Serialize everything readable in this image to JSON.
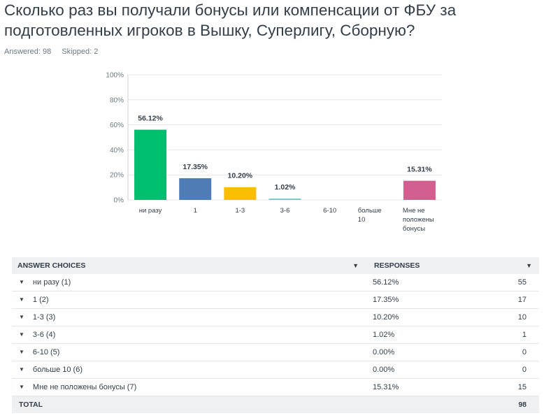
{
  "question": {
    "title": "Сколько раз вы получали бонусы или компенсации от ФБУ за подготовленных игроков в Вышку, Суперлигу, Сборную?",
    "answered": "Answered: 98",
    "skipped": "Skipped: 2"
  },
  "chart_data": {
    "type": "bar",
    "categories": [
      "ни разу",
      "1",
      "1-3",
      "3-6",
      "6-10",
      "больше 10",
      "Мне не положены бонусы"
    ],
    "category_lines": [
      [
        "ни разу"
      ],
      [
        "1"
      ],
      [
        "1-3"
      ],
      [
        "3-6"
      ],
      [
        "6-10"
      ],
      [
        "больше",
        "10"
      ],
      [
        "Мне не",
        "положены",
        "бонусы"
      ]
    ],
    "values": [
      56.12,
      17.35,
      10.2,
      1.02,
      0.0,
      0.0,
      15.31
    ],
    "data_labels": [
      "56.12%",
      "17.35%",
      "10.20%",
      "1.02%",
      "",
      "",
      "15.31%"
    ],
    "colors": [
      "#00bf6f",
      "#507cb6",
      "#f9be00",
      "#6bc8cd",
      "#ff8b4f",
      "#7f7fff",
      "#d25f90"
    ],
    "ylim": [
      0,
      100
    ],
    "yticks": [
      "0%",
      "20%",
      "40%",
      "60%",
      "80%",
      "100%"
    ],
    "ytick_values": [
      0,
      20,
      40,
      60,
      80,
      100
    ],
    "grid": true,
    "title": "",
    "xlabel": "",
    "ylabel": ""
  },
  "table": {
    "header_choices": "ANSWER CHOICES",
    "header_responses": "RESPONSES",
    "rows": [
      {
        "label": "ни разу (1)",
        "pct": "56.12%",
        "count": "55"
      },
      {
        "label": "1 (2)",
        "pct": "17.35%",
        "count": "17"
      },
      {
        "label": "1-3 (3)",
        "pct": "10.20%",
        "count": "10"
      },
      {
        "label": "3-6 (4)",
        "pct": "1.02%",
        "count": "1"
      },
      {
        "label": "6-10 (5)",
        "pct": "0.00%",
        "count": "0"
      },
      {
        "label": "больше 10 (6)",
        "pct": "0.00%",
        "count": "0"
      },
      {
        "label": "Мне не положены бонусы (7)",
        "pct": "15.31%",
        "count": "15"
      }
    ],
    "total_label": "TOTAL",
    "total_count": "98"
  },
  "icons": {
    "caret": "caret-down-icon"
  }
}
